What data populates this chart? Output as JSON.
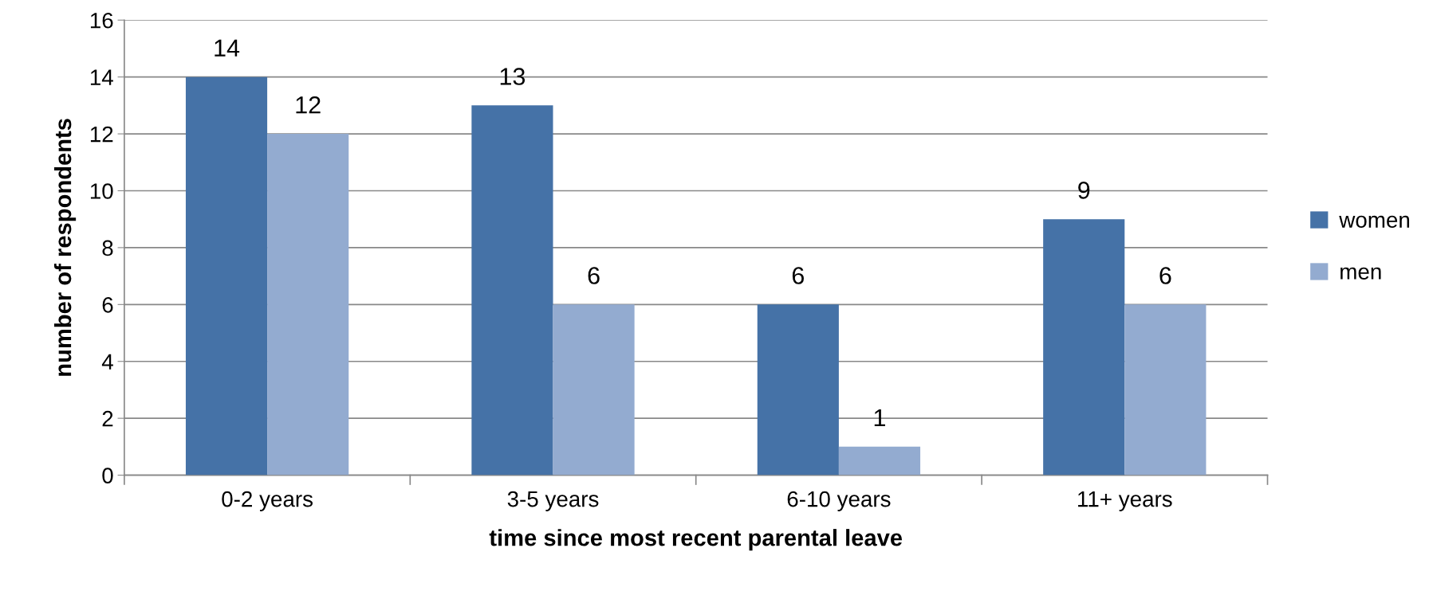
{
  "chart_data": {
    "type": "bar",
    "xlabel": "time since most recent parental leave",
    "ylabel": "number of respondents",
    "categories": [
      "0-2 years",
      "3-5 years",
      "6-10 years",
      "11+ years"
    ],
    "series": [
      {
        "name": "women",
        "color": "#4572a7",
        "values": [
          14,
          13,
          6,
          9
        ]
      },
      {
        "name": "men",
        "color": "#93abd0",
        "values": [
          12,
          6,
          1,
          6
        ]
      }
    ],
    "ylim": [
      0,
      16
    ],
    "yticks": [
      0,
      2,
      4,
      6,
      8,
      10,
      12,
      14,
      16
    ],
    "grid": "y",
    "legend": "right",
    "data_labels": true
  }
}
